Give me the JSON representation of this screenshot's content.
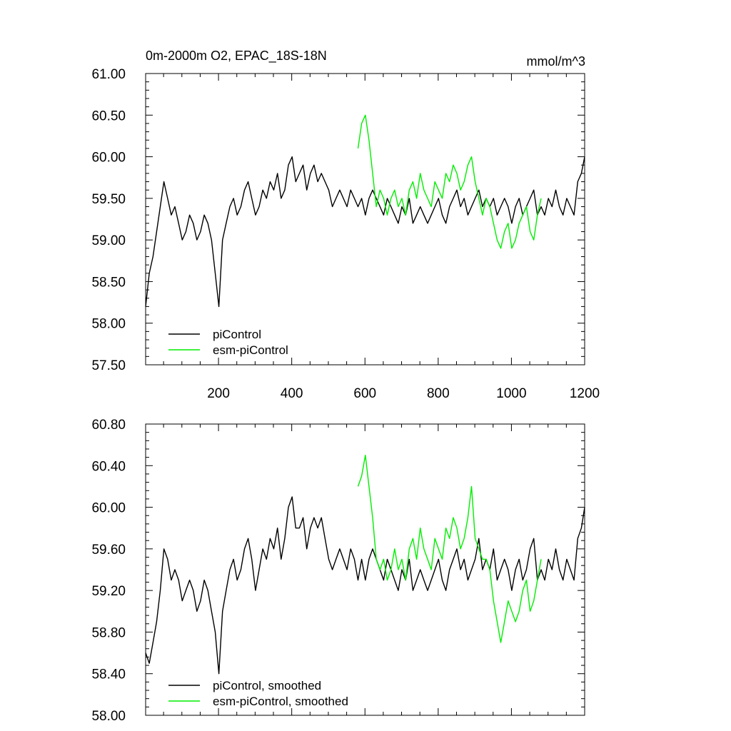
{
  "chart_data": [
    {
      "type": "line",
      "title": "0m-2000m O2, EPAC_18S-18N",
      "units": "mmol/m^3",
      "xlim": [
        1,
        1200
      ],
      "ylim": [
        57.5,
        61.0
      ],
      "x_ticks": [
        200,
        400,
        600,
        800,
        1000,
        1200
      ],
      "x_tick_labels": [
        "200",
        "400",
        "600",
        "800",
        "1000",
        "1200"
      ],
      "y_ticks": [
        57.5,
        58.0,
        58.5,
        59.0,
        59.5,
        60.0,
        60.5,
        61.0
      ],
      "y_tick_labels": [
        "57.50",
        "58.00",
        "58.50",
        "59.00",
        "59.50",
        "60.00",
        "60.50",
        "61.00"
      ],
      "legend_position": "bottom-left",
      "series": [
        {
          "name": "piControl",
          "color": "#000000",
          "x_start": 1,
          "x_step": 10,
          "values": [
            58.2,
            58.6,
            58.8,
            59.1,
            59.4,
            59.7,
            59.5,
            59.3,
            59.4,
            59.2,
            59.0,
            59.1,
            59.3,
            59.2,
            59.0,
            59.1,
            59.3,
            59.2,
            59.0,
            58.6,
            58.2,
            59.0,
            59.2,
            59.4,
            59.5,
            59.3,
            59.4,
            59.6,
            59.7,
            59.5,
            59.3,
            59.4,
            59.6,
            59.5,
            59.7,
            59.6,
            59.8,
            59.5,
            59.6,
            59.9,
            60.0,
            59.7,
            59.8,
            59.9,
            59.6,
            59.8,
            59.9,
            59.7,
            59.8,
            59.7,
            59.6,
            59.4,
            59.5,
            59.6,
            59.5,
            59.4,
            59.6,
            59.5,
            59.4,
            59.5,
            59.3,
            59.5,
            59.6,
            59.5,
            59.4,
            59.3,
            59.5,
            59.4,
            59.3,
            59.2,
            59.4,
            59.3,
            59.5,
            59.2,
            59.3,
            59.4,
            59.3,
            59.2,
            59.3,
            59.4,
            59.5,
            59.3,
            59.2,
            59.4,
            59.5,
            59.6,
            59.4,
            59.5,
            59.3,
            59.4,
            59.5,
            59.6,
            59.4,
            59.5,
            59.4,
            59.5,
            59.3,
            59.4,
            59.5,
            59.4,
            59.2,
            59.4,
            59.5,
            59.3,
            59.4,
            59.5,
            59.6,
            59.3,
            59.4,
            59.3,
            59.5,
            59.4,
            59.6,
            59.4,
            59.3,
            59.5,
            59.4,
            59.3,
            59.7,
            59.8,
            60.0
          ]
        },
        {
          "name": "esm-piControl",
          "color": "#00ee00",
          "x_start": 581,
          "x_step": 10,
          "values": [
            60.1,
            60.4,
            60.5,
            60.2,
            59.8,
            59.4,
            59.6,
            59.5,
            59.3,
            59.5,
            59.6,
            59.4,
            59.5,
            59.3,
            59.6,
            59.7,
            59.5,
            59.8,
            59.6,
            59.5,
            59.4,
            59.7,
            59.6,
            59.5,
            59.8,
            59.7,
            59.9,
            59.8,
            59.6,
            59.7,
            59.9,
            60.0,
            59.7,
            59.5,
            59.3,
            59.5,
            59.4,
            59.2,
            59.0,
            58.9,
            59.1,
            59.2,
            58.9,
            59.0,
            59.2,
            59.3,
            59.4,
            59.1,
            59.0,
            59.3,
            59.5
          ]
        }
      ]
    },
    {
      "type": "line",
      "xlim": [
        1,
        1200
      ],
      "ylim": [
        58.0,
        60.8
      ],
      "x_ticks": [
        200,
        400,
        600,
        800,
        1000,
        1200
      ],
      "y_ticks": [
        58.0,
        58.4,
        58.8,
        59.2,
        59.6,
        60.0,
        60.4,
        60.8
      ],
      "y_tick_labels": [
        "58.00",
        "58.40",
        "58.80",
        "59.20",
        "59.60",
        "60.00",
        "60.40",
        "60.80"
      ],
      "legend_position": "bottom-left",
      "series": [
        {
          "name": "piControl, smoothed",
          "color": "#000000",
          "x_start": 1,
          "x_step": 10,
          "values": [
            58.6,
            58.5,
            58.7,
            58.9,
            59.2,
            59.6,
            59.5,
            59.3,
            59.4,
            59.3,
            59.1,
            59.2,
            59.3,
            59.2,
            59.0,
            59.1,
            59.3,
            59.2,
            59.0,
            58.8,
            58.4,
            59.0,
            59.2,
            59.4,
            59.5,
            59.3,
            59.4,
            59.6,
            59.7,
            59.5,
            59.2,
            59.4,
            59.6,
            59.5,
            59.7,
            59.6,
            59.8,
            59.5,
            59.7,
            60.0,
            60.1,
            59.8,
            59.8,
            59.9,
            59.6,
            59.8,
            59.9,
            59.8,
            59.9,
            59.7,
            59.5,
            59.4,
            59.5,
            59.6,
            59.5,
            59.4,
            59.6,
            59.5,
            59.3,
            59.5,
            59.3,
            59.5,
            59.6,
            59.5,
            59.4,
            59.3,
            59.5,
            59.4,
            59.3,
            59.2,
            59.4,
            59.3,
            59.5,
            59.2,
            59.3,
            59.4,
            59.3,
            59.2,
            59.3,
            59.4,
            59.5,
            59.3,
            59.2,
            59.4,
            59.5,
            59.6,
            59.4,
            59.5,
            59.3,
            59.4,
            59.5,
            59.7,
            59.4,
            59.5,
            59.4,
            59.6,
            59.3,
            59.4,
            59.5,
            59.4,
            59.2,
            59.4,
            59.5,
            59.3,
            59.4,
            59.6,
            59.7,
            59.3,
            59.4,
            59.3,
            59.5,
            59.4,
            59.6,
            59.4,
            59.3,
            59.5,
            59.4,
            59.3,
            59.7,
            59.8,
            60.0
          ]
        },
        {
          "name": "esm-piControl, smoothed",
          "color": "#00ee00",
          "x_start": 581,
          "x_step": 10,
          "values": [
            60.2,
            60.3,
            60.5,
            60.2,
            59.9,
            59.5,
            59.4,
            59.5,
            59.3,
            59.4,
            59.6,
            59.4,
            59.5,
            59.3,
            59.6,
            59.7,
            59.5,
            59.8,
            59.6,
            59.5,
            59.4,
            59.7,
            59.6,
            59.5,
            59.8,
            59.7,
            59.9,
            59.8,
            59.6,
            59.7,
            59.9,
            60.2,
            59.7,
            59.6,
            59.5,
            59.5,
            59.4,
            59.1,
            58.9,
            58.7,
            58.9,
            59.1,
            59.0,
            58.9,
            59.0,
            59.2,
            59.3,
            59.0,
            59.1,
            59.3,
            59.5
          ]
        }
      ]
    }
  ]
}
